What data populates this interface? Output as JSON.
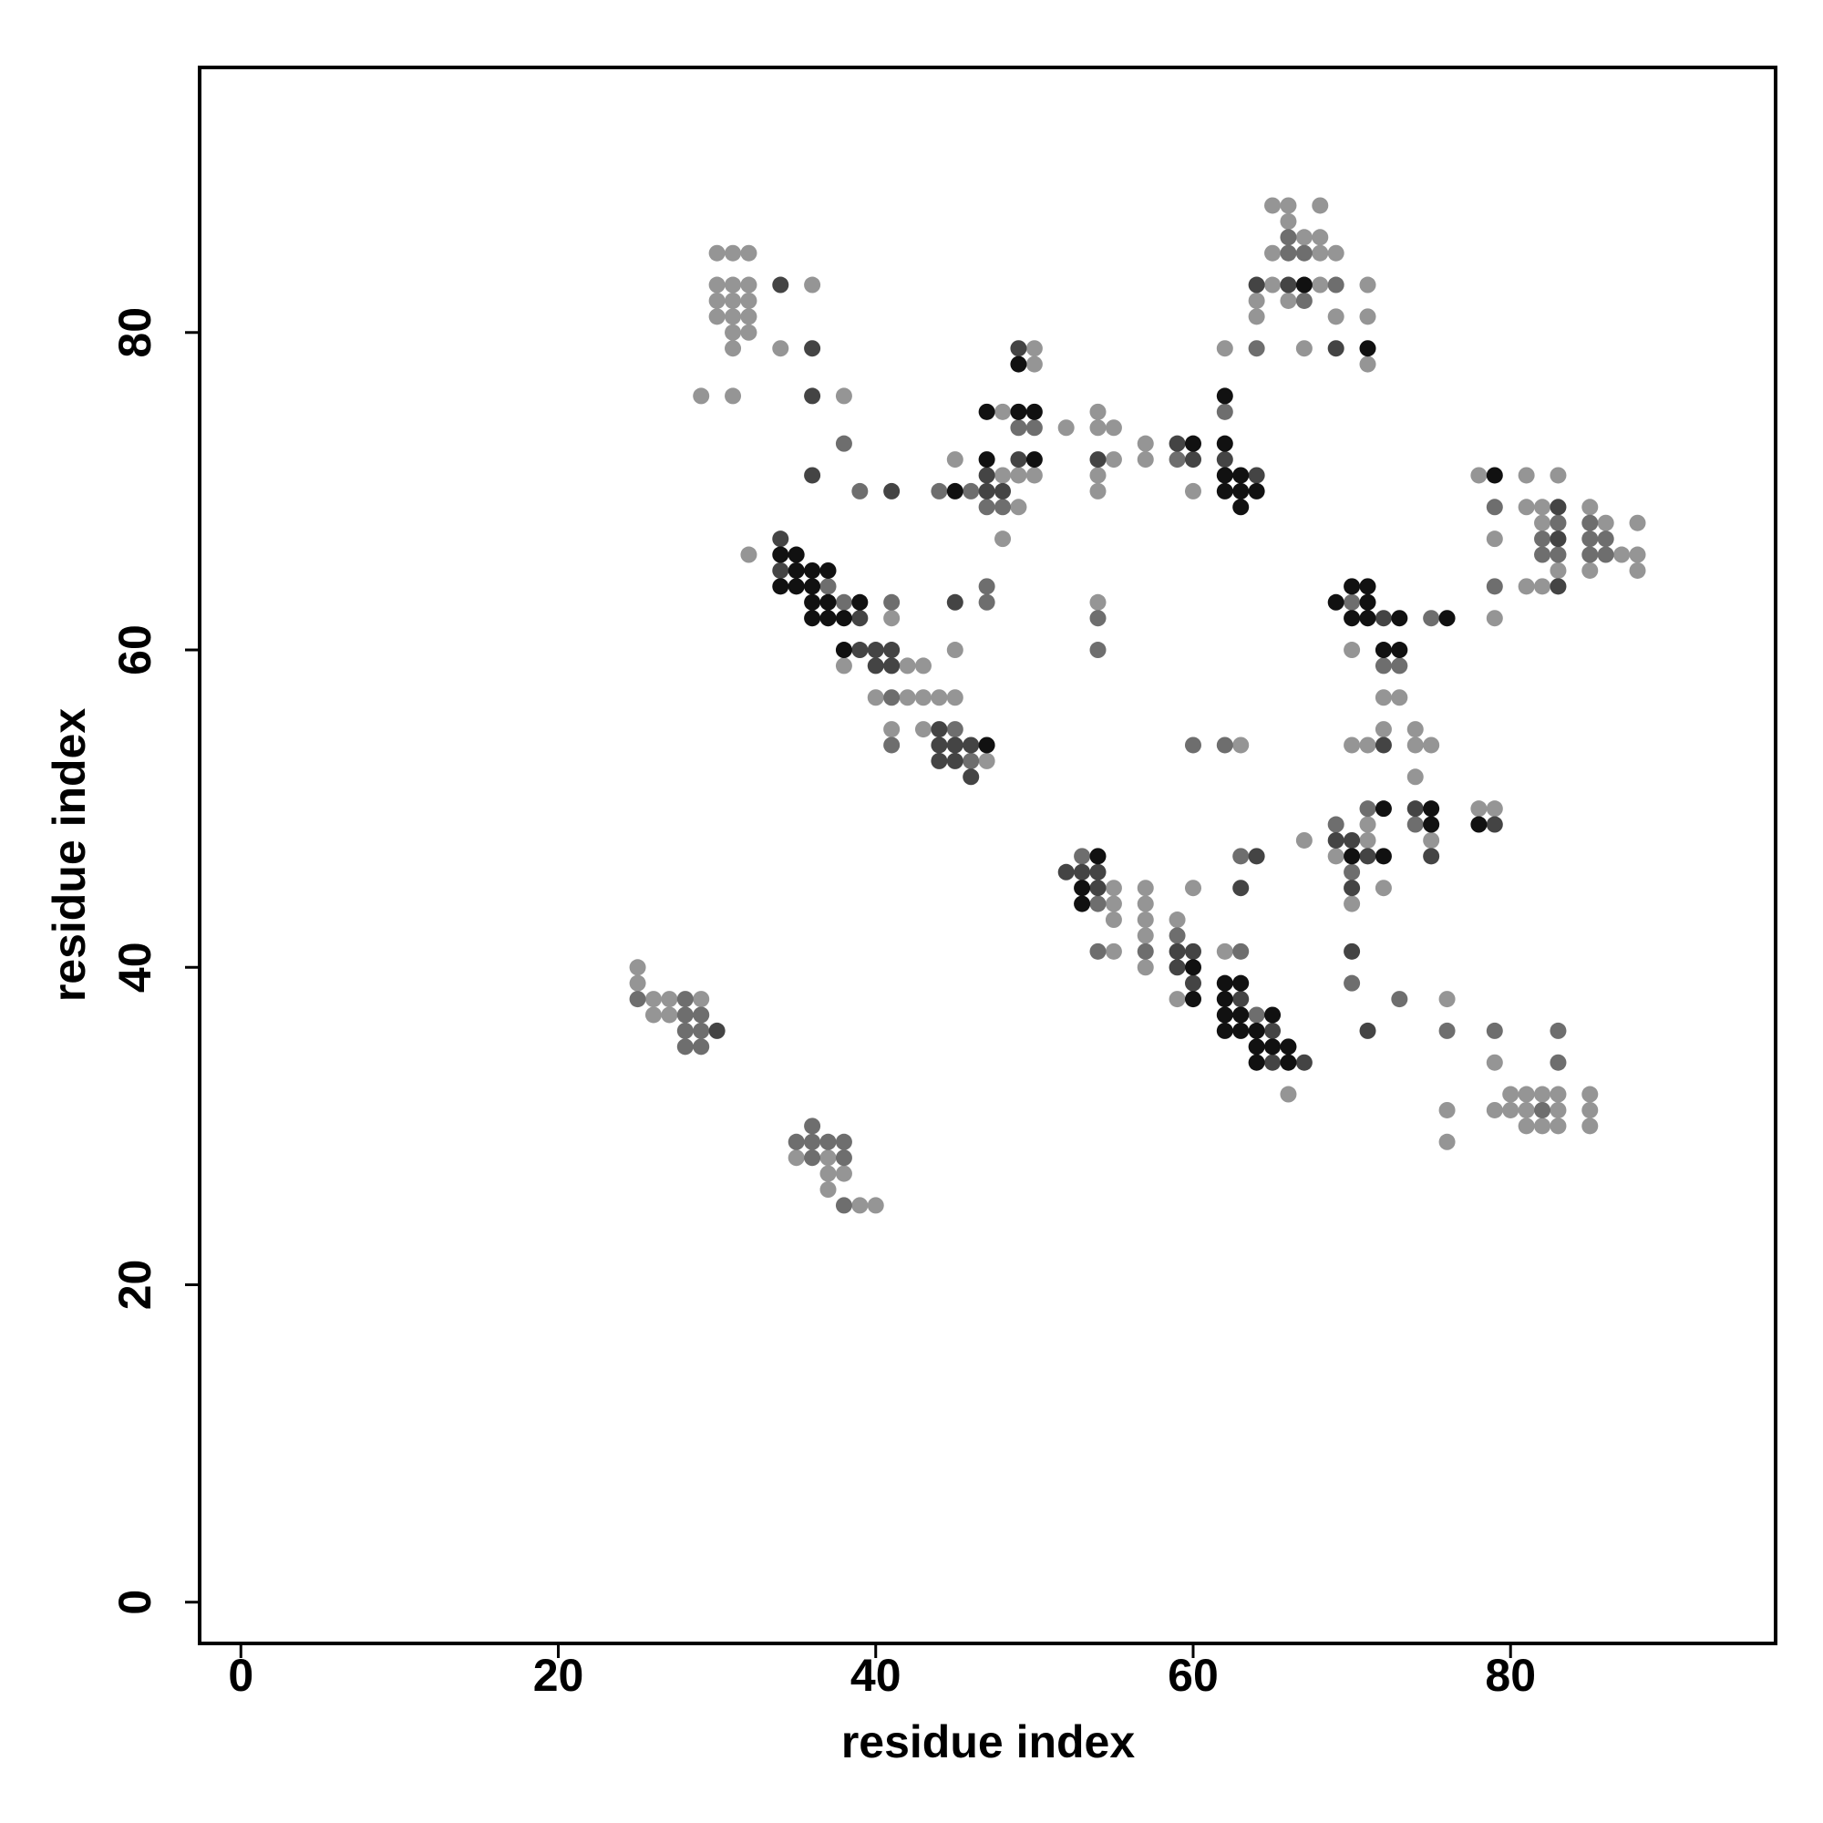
{
  "chart_data": {
    "type": "scatter",
    "x_label": "residue index",
    "y_label": "residue index",
    "xlim": [
      -2.6,
      96.7
    ],
    "ylim": [
      -2.6,
      96.7
    ],
    "xticks": [
      0,
      20,
      40,
      60,
      80
    ],
    "yticks": [
      0,
      20,
      40,
      60,
      80
    ],
    "series": [
      {
        "color": "#959595",
        "x": [
          30,
          31,
          32,
          30,
          31,
          32,
          30,
          31,
          32,
          30,
          31,
          32,
          31,
          32,
          31,
          29,
          31,
          36,
          34,
          38,
          32,
          38,
          42,
          43,
          40,
          42,
          43,
          44,
          45,
          41,
          43,
          47,
          41,
          45,
          50,
          50,
          48,
          45,
          48,
          49,
          50,
          49,
          48,
          52,
          54,
          54,
          55,
          55,
          54,
          54,
          57,
          57,
          60,
          54,
          62,
          65,
          66,
          68,
          66,
          67,
          68,
          65,
          68,
          69,
          65,
          68,
          71,
          64,
          66,
          64,
          69,
          71,
          67,
          71,
          78,
          81,
          83,
          81,
          82,
          85,
          82,
          86,
          88,
          79,
          87,
          88,
          83,
          85,
          88,
          81,
          82,
          79,
          70,
          72,
          73,
          70,
          71,
          72,
          74,
          74,
          75,
          74,
          63,
          71,
          75,
          78,
          79,
          67,
          71,
          69,
          72,
          70,
          55,
          55,
          55,
          57,
          57,
          57,
          57,
          57,
          59,
          59,
          55,
          60,
          62,
          66,
          76,
          79,
          76,
          76,
          79,
          80,
          81,
          82,
          83,
          85,
          80,
          81,
          83,
          85,
          81,
          82,
          83,
          85,
          25,
          25,
          26,
          27,
          29,
          26,
          27,
          35,
          37,
          37,
          38,
          37,
          39,
          40
        ],
        "values": [
          85,
          85,
          85,
          83,
          83,
          83,
          82,
          82,
          82,
          81,
          81,
          81,
          80,
          80,
          79,
          76,
          76,
          83,
          79,
          76,
          66,
          59,
          59,
          59,
          57,
          57,
          57,
          57,
          57,
          55,
          55,
          53,
          62,
          60,
          79,
          78,
          75,
          72,
          71,
          71,
          71,
          69,
          67,
          74,
          75,
          74,
          74,
          72,
          71,
          70,
          73,
          72,
          70,
          63,
          79,
          88,
          88,
          88,
          87,
          86,
          86,
          85,
          85,
          85,
          83,
          83,
          83,
          82,
          82,
          81,
          81,
          81,
          79,
          78,
          71,
          71,
          71,
          69,
          69,
          69,
          68,
          68,
          68,
          67,
          66,
          66,
          65,
          65,
          65,
          64,
          64,
          62,
          60,
          57,
          57,
          54,
          54,
          55,
          55,
          54,
          54,
          52,
          54,
          49,
          48,
          50,
          50,
          48,
          48,
          47,
          45,
          44,
          45,
          44,
          43,
          45,
          44,
          43,
          42,
          40,
          43,
          38,
          41,
          45,
          41,
          32,
          38,
          34,
          31,
          29,
          31,
          32,
          32,
          32,
          32,
          32,
          31,
          31,
          31,
          31,
          30,
          30,
          30,
          30,
          40,
          39,
          38,
          38,
          38,
          37,
          37,
          28,
          28,
          27,
          27,
          26,
          25,
          25
        ]
      },
      {
        "color": "#6e6e6e",
        "x": [
          38,
          39,
          37,
          38,
          41,
          41,
          45,
          46,
          41,
          47,
          47,
          49,
          50,
          44,
          46,
          47,
          48,
          59,
          54,
          54,
          62,
          66,
          66,
          67,
          69,
          67,
          64,
          79,
          83,
          85,
          82,
          85,
          86,
          82,
          83,
          85,
          86,
          79,
          70,
          75,
          72,
          73,
          60,
          62,
          71,
          74,
          69,
          70,
          53,
          54,
          57,
          59,
          54,
          63,
          63,
          64,
          70,
          73,
          76,
          79,
          83,
          83,
          82,
          25,
          28,
          28,
          29,
          28,
          29,
          28,
          29,
          35,
          36,
          36,
          37,
          38,
          36,
          38,
          38
        ],
        "values": [
          73,
          70,
          64,
          63,
          57,
          54,
          55,
          53,
          63,
          64,
          63,
          74,
          74,
          70,
          70,
          69,
          69,
          72,
          62,
          60,
          75,
          86,
          85,
          85,
          83,
          82,
          79,
          69,
          68,
          68,
          67,
          67,
          67,
          66,
          66,
          66,
          66,
          64,
          63,
          62,
          59,
          59,
          54,
          54,
          50,
          49,
          49,
          46,
          47,
          44,
          41,
          42,
          41,
          47,
          41,
          37,
          39,
          38,
          36,
          36,
          36,
          34,
          31,
          38,
          38,
          37,
          37,
          36,
          36,
          35,
          35,
          29,
          30,
          29,
          29,
          29,
          28,
          28,
          25
        ]
      },
      {
        "color": "#444444",
        "x": [
          34,
          36,
          36,
          36,
          41,
          34,
          34,
          39,
          39,
          40,
          41,
          40,
          41,
          44,
          44,
          45,
          46,
          44,
          45,
          46,
          45,
          49,
          49,
          47,
          47,
          48,
          54,
          59,
          60,
          62,
          64,
          64,
          66,
          69,
          83,
          83,
          83,
          72,
          72,
          74,
          75,
          79,
          69,
          70,
          71,
          70,
          52,
          53,
          54,
          54,
          59,
          60,
          59,
          60,
          64,
          63,
          63,
          65,
          65,
          67,
          70,
          71,
          30
        ],
        "values": [
          83,
          79,
          76,
          71,
          70,
          67,
          65,
          62,
          60,
          60,
          60,
          59,
          59,
          55,
          54,
          54,
          54,
          53,
          53,
          52,
          63,
          79,
          72,
          71,
          70,
          70,
          72,
          73,
          72,
          72,
          71,
          83,
          83,
          79,
          69,
          67,
          64,
          62,
          54,
          50,
          47,
          49,
          48,
          48,
          47,
          45,
          46,
          46,
          46,
          45,
          41,
          41,
          40,
          39,
          47,
          45,
          38,
          36,
          34,
          34,
          41,
          36,
          36
        ]
      },
      {
        "color": "#111111",
        "x": [
          34,
          35,
          35,
          36,
          37,
          34,
          35,
          36,
          36,
          37,
          39,
          36,
          37,
          38,
          38,
          47,
          49,
          47,
          49,
          50,
          47,
          50,
          45,
          60,
          62,
          62,
          62,
          63,
          62,
          63,
          64,
          63,
          67,
          71,
          79,
          69,
          70,
          71,
          71,
          70,
          71,
          73,
          76,
          72,
          73,
          72,
          75,
          75,
          78,
          70,
          72,
          54,
          53,
          53,
          60,
          60,
          62,
          63,
          62,
          62,
          63,
          65,
          62,
          63,
          64,
          64,
          65,
          66,
          64,
          66
        ],
        "values": [
          66,
          66,
          65,
          65,
          65,
          64,
          64,
          64,
          63,
          63,
          63,
          62,
          62,
          62,
          60,
          54,
          78,
          75,
          75,
          75,
          72,
          72,
          70,
          73,
          76,
          73,
          71,
          71,
          70,
          70,
          70,
          69,
          83,
          79,
          71,
          63,
          64,
          64,
          63,
          62,
          62,
          62,
          62,
          60,
          60,
          50,
          50,
          49,
          49,
          47,
          47,
          47,
          45,
          44,
          40,
          38,
          39,
          39,
          38,
          37,
          37,
          37,
          36,
          36,
          36,
          35,
          35,
          35,
          34,
          34
        ]
      }
    ]
  }
}
